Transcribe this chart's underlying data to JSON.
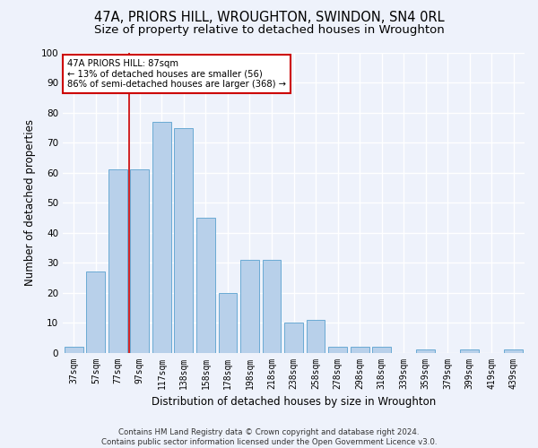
{
  "title": "47A, PRIORS HILL, WROUGHTON, SWINDON, SN4 0RL",
  "subtitle": "Size of property relative to detached houses in Wroughton",
  "xlabel": "Distribution of detached houses by size in Wroughton",
  "ylabel": "Number of detached properties",
  "categories": [
    "37sqm",
    "57sqm",
    "77sqm",
    "97sqm",
    "117sqm",
    "138sqm",
    "158sqm",
    "178sqm",
    "198sqm",
    "218sqm",
    "238sqm",
    "258sqm",
    "278sqm",
    "298sqm",
    "318sqm",
    "339sqm",
    "359sqm",
    "379sqm",
    "399sqm",
    "419sqm",
    "439sqm"
  ],
  "values": [
    2,
    27,
    61,
    61,
    77,
    75,
    45,
    20,
    31,
    31,
    10,
    11,
    2,
    2,
    2,
    0,
    1,
    0,
    1,
    0,
    1
  ],
  "bar_color": "#b8d0ea",
  "bar_edge_color": "#6aaad4",
  "marker_color": "#cc0000",
  "annotation_line1": "47A PRIORS HILL: 87sqm",
  "annotation_line2": "← 13% of detached houses are smaller (56)",
  "annotation_line3": "86% of semi-detached houses are larger (368) →",
  "footer_text": "Contains HM Land Registry data © Crown copyright and database right 2024.\nContains public sector information licensed under the Open Government Licence v3.0.",
  "ylim": [
    0,
    100
  ],
  "yticks": [
    0,
    10,
    20,
    30,
    40,
    50,
    60,
    70,
    80,
    90,
    100
  ],
  "background_color": "#eef2fb",
  "grid_color": "#ffffff",
  "title_fontsize": 10.5,
  "subtitle_fontsize": 9.5,
  "tick_fontsize": 7,
  "ylabel_fontsize": 8.5,
  "xlabel_fontsize": 8.5,
  "footer_fontsize": 6.2
}
